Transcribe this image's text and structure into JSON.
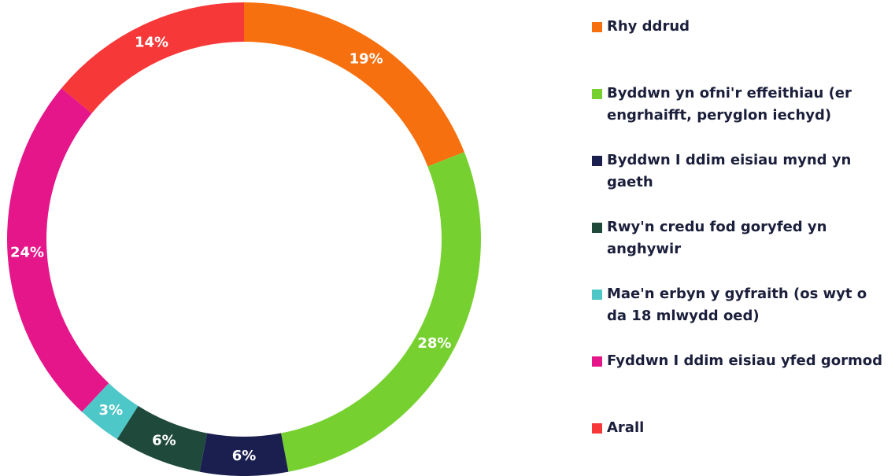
{
  "chart_data": {
    "type": "donut",
    "categories": [
      "Rhy ddrud",
      "Byddwn yn ofni'r effeithiau (er engrhaifft, peryglon iechyd)",
      "Byddwn I ddim eisiau mynd yn gaeth",
      "Rwy'n credu fod goryfed yn anghywir",
      "Mae'n erbyn y gyfraith (os wyt o da 18 mlwydd oed)",
      "Fyddwn I ddim eisiau yfed gormod",
      "Arall"
    ],
    "values": [
      19,
      28,
      6,
      6,
      3,
      24,
      14
    ],
    "value_labels": [
      "19%",
      "28%",
      "6%",
      "6%",
      "3%",
      "24%",
      "14%"
    ],
    "colors": [
      "#f7700f",
      "#76d130",
      "#1b1f4f",
      "#1f4a3b",
      "#4ec7c9",
      "#e5168a",
      "#f73838"
    ],
    "legend": "right"
  }
}
